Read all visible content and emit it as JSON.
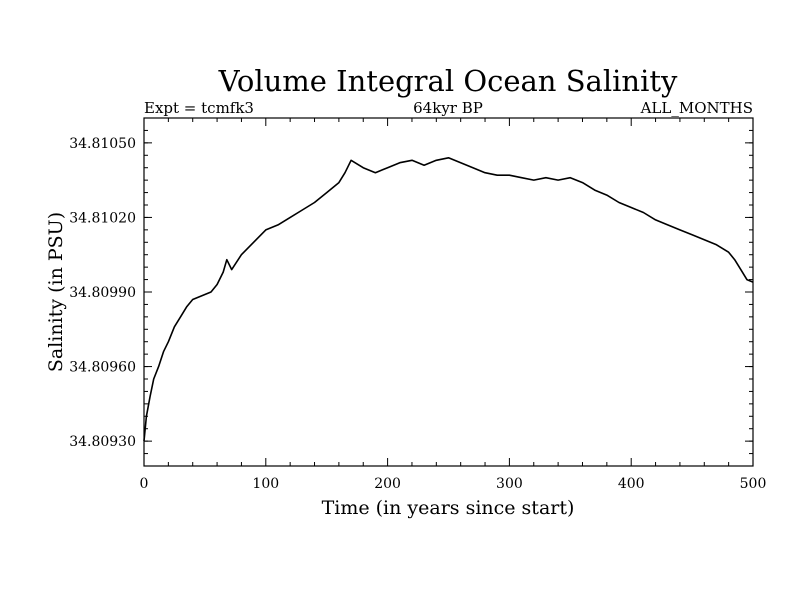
{
  "chart_data": {
    "type": "line",
    "title": "Volume Integral Ocean Salinity",
    "subtitle_left": "Expt = tcmfk3",
    "subtitle_center": "64kyr BP",
    "subtitle_right": "ALL_MONTHS",
    "xlabel": "Time (in years since start)",
    "ylabel": "Salinity (in PSU)",
    "xlim": [
      0,
      500
    ],
    "ylim": [
      34.8092,
      34.8106
    ],
    "xticks": [
      0,
      100,
      200,
      300,
      400,
      500
    ],
    "xtick_labels": [
      "0",
      "100",
      "200",
      "300",
      "400",
      "500"
    ],
    "yticks": [
      34.8093,
      34.8096,
      34.8099,
      34.8102,
      34.8105
    ],
    "ytick_labels": [
      "34.80930",
      "34.80960",
      "34.80990",
      "34.81020",
      "34.81050"
    ],
    "grid": false,
    "line_color": "#000000",
    "series": [
      {
        "x": [
          0,
          2,
          5,
          8,
          12,
          16,
          20,
          25,
          30,
          35,
          40,
          45,
          50,
          55,
          60,
          65,
          68,
          72,
          80,
          90,
          100,
          110,
          120,
          130,
          140,
          150,
          160,
          165,
          170,
          180,
          190,
          200,
          210,
          220,
          230,
          240,
          250,
          260,
          270,
          280,
          290,
          300,
          310,
          320,
          330,
          340,
          350,
          360,
          370,
          380,
          390,
          400,
          410,
          420,
          430,
          440,
          450,
          460,
          470,
          480,
          485,
          490,
          495,
          500
        ],
        "y": [
          34.8093,
          34.8094,
          34.80948,
          34.80955,
          34.8096,
          34.80966,
          34.8097,
          34.80976,
          34.8098,
          34.80984,
          34.80987,
          34.80988,
          34.80989,
          34.8099,
          34.80993,
          34.80998,
          34.81003,
          34.80999,
          34.81005,
          34.8101,
          34.81015,
          34.81017,
          34.8102,
          34.81023,
          34.81026,
          34.8103,
          34.81034,
          34.81038,
          34.81043,
          34.8104,
          34.81038,
          34.8104,
          34.81042,
          34.81043,
          34.81041,
          34.81043,
          34.81044,
          34.81042,
          34.8104,
          34.81038,
          34.81037,
          34.81037,
          34.81036,
          34.81035,
          34.81036,
          34.81035,
          34.81036,
          34.81034,
          34.81031,
          34.81029,
          34.81026,
          34.81024,
          34.81022,
          34.81019,
          34.81017,
          34.81015,
          34.81013,
          34.81011,
          34.81009,
          34.81006,
          34.81003,
          34.80999,
          34.80995,
          34.80994
        ]
      }
    ]
  }
}
